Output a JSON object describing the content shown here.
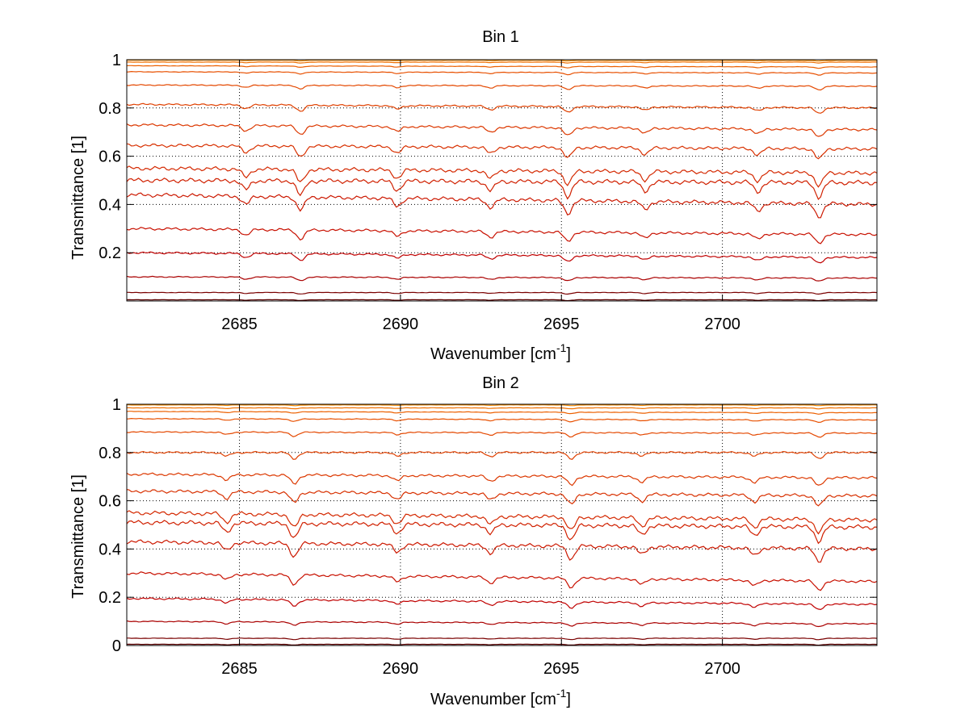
{
  "chart_data": [
    {
      "type": "line",
      "title": "Bin 1",
      "xlabel": "Wavenumber [cm",
      "xlabel_sup": "-1",
      "xlabel_end": "]",
      "ylabel": "Transmittance [1]",
      "xlim": [
        2681.5,
        2704.8
      ],
      "ylim": [
        0,
        1
      ],
      "xticks": [
        2685,
        2690,
        2695,
        2700
      ],
      "xtick_labels": [
        "2685",
        "2690",
        "2695",
        "2700"
      ],
      "yticks": [
        0.2,
        0.4,
        0.6,
        0.8,
        1
      ],
      "ytick_labels": [
        "0.2",
        "0.4",
        "0.6",
        "0.8",
        "1"
      ],
      "grid": true,
      "absorption_lines": [
        2685.2,
        2686.9,
        2689.9,
        2692.8,
        2695.2,
        2697.6,
        2701.1,
        2703.0
      ],
      "series": [
        {
          "start": 0.005,
          "end": 0.005,
          "color": "#5a0000"
        },
        {
          "start": 0.035,
          "end": 0.035,
          "color": "#7a0000"
        },
        {
          "start": 0.1,
          "end": 0.095,
          "color": "#aa0000"
        },
        {
          "start": 0.2,
          "end": 0.18,
          "color": "#c00000"
        },
        {
          "start": 0.3,
          "end": 0.275,
          "color": "#c81000"
        },
        {
          "start": 0.44,
          "end": 0.4,
          "color": "#cc1800"
        },
        {
          "start": 0.5,
          "end": 0.49,
          "color": "#d02000"
        },
        {
          "start": 0.55,
          "end": 0.53,
          "color": "#d42800"
        },
        {
          "start": 0.645,
          "end": 0.63,
          "color": "#d83000"
        },
        {
          "start": 0.73,
          "end": 0.71,
          "color": "#dc3800"
        },
        {
          "start": 0.815,
          "end": 0.8,
          "color": "#e04000"
        },
        {
          "start": 0.895,
          "end": 0.89,
          "color": "#e44800"
        },
        {
          "start": 0.95,
          "end": 0.945,
          "color": "#e85000"
        },
        {
          "start": 0.975,
          "end": 0.97,
          "color": "#ec6000"
        },
        {
          "start": 0.99,
          "end": 0.99,
          "color": "#f07000"
        },
        {
          "start": 0.998,
          "end": 0.997,
          "color": "#f58a00"
        }
      ]
    },
    {
      "type": "line",
      "title": "Bin 2",
      "xlabel": "Wavenumber [cm",
      "xlabel_sup": "-1",
      "xlabel_end": "]",
      "ylabel": "Transmittance [1]",
      "xlim": [
        2681.5,
        2704.8
      ],
      "ylim": [
        0,
        1
      ],
      "xticks": [
        2685,
        2690,
        2695,
        2700
      ],
      "xtick_labels": [
        "2685",
        "2690",
        "2695",
        "2700"
      ],
      "yticks": [
        0,
        0.2,
        0.4,
        0.6,
        0.8,
        1
      ],
      "ytick_labels": [
        "0",
        "0.2",
        "0.4",
        "0.6",
        "0.8",
        "1"
      ],
      "grid": true,
      "absorption_lines": [
        2684.6,
        2686.7,
        2689.9,
        2692.8,
        2695.3,
        2697.5,
        2701.0,
        2703.0
      ],
      "series": [
        {
          "start": 0.005,
          "end": 0.005,
          "color": "#5a0000"
        },
        {
          "start": 0.03,
          "end": 0.03,
          "color": "#7a0000"
        },
        {
          "start": 0.1,
          "end": 0.09,
          "color": "#aa0000"
        },
        {
          "start": 0.195,
          "end": 0.17,
          "color": "#c00000"
        },
        {
          "start": 0.3,
          "end": 0.265,
          "color": "#c81000"
        },
        {
          "start": 0.43,
          "end": 0.4,
          "color": "#cc1800"
        },
        {
          "start": 0.51,
          "end": 0.49,
          "color": "#d02000"
        },
        {
          "start": 0.55,
          "end": 0.52,
          "color": "#d42800"
        },
        {
          "start": 0.64,
          "end": 0.62,
          "color": "#d83000"
        },
        {
          "start": 0.71,
          "end": 0.695,
          "color": "#dc3800"
        },
        {
          "start": 0.8,
          "end": 0.8,
          "color": "#e04000"
        },
        {
          "start": 0.885,
          "end": 0.88,
          "color": "#e44800"
        },
        {
          "start": 0.94,
          "end": 0.935,
          "color": "#e85000"
        },
        {
          "start": 0.97,
          "end": 0.965,
          "color": "#ec6000"
        },
        {
          "start": 0.985,
          "end": 0.985,
          "color": "#f07000"
        },
        {
          "start": 0.997,
          "end": 0.997,
          "color": "#f58a00"
        }
      ]
    }
  ]
}
